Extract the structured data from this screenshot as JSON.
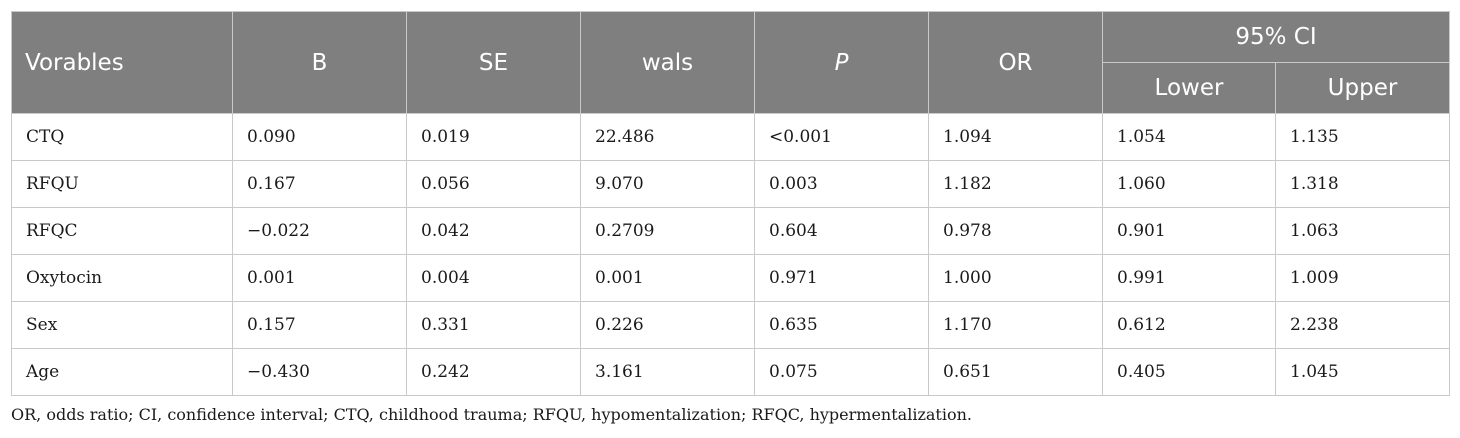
{
  "table": {
    "headers": {
      "variables": "Vorables",
      "b": "B",
      "se": "SE",
      "wals": "wals",
      "p": "P",
      "or": "OR",
      "ci": "95% CI",
      "lower": "Lower",
      "upper": "Upper"
    },
    "rows": [
      [
        "CTQ",
        "0.090",
        "0.019",
        "22.486",
        "<0.001",
        "1.094",
        "1.054",
        "1.135"
      ],
      [
        "RFQU",
        "0.167",
        "0.056",
        "9.070",
        "0.003",
        "1.182",
        "1.060",
        "1.318"
      ],
      [
        "RFQC",
        "−0.022",
        "0.042",
        "0.2709",
        "0.604",
        "0.978",
        "0.901",
        "1.063"
      ],
      [
        "Oxytocin",
        "0.001",
        "0.004",
        "0.001",
        "0.971",
        "1.000",
        "0.991",
        "1.009"
      ],
      [
        "Sex",
        "0.157",
        "0.331",
        "0.226",
        "0.635",
        "1.170",
        "0.612",
        "2.238"
      ],
      [
        "Age",
        "−0.430",
        "0.242",
        "3.161",
        "0.075",
        "0.651",
        "0.405",
        "1.045"
      ]
    ]
  },
  "footnote": "OR, odds ratio; CI, confidence interval; CTQ, childhood trauma; RFQU, hypomentalization; RFQC, hypermentalization.",
  "colors": {
    "header_bg": "#7f7f7f",
    "header_text": "#ffffff",
    "border": "#c9c9c9"
  }
}
